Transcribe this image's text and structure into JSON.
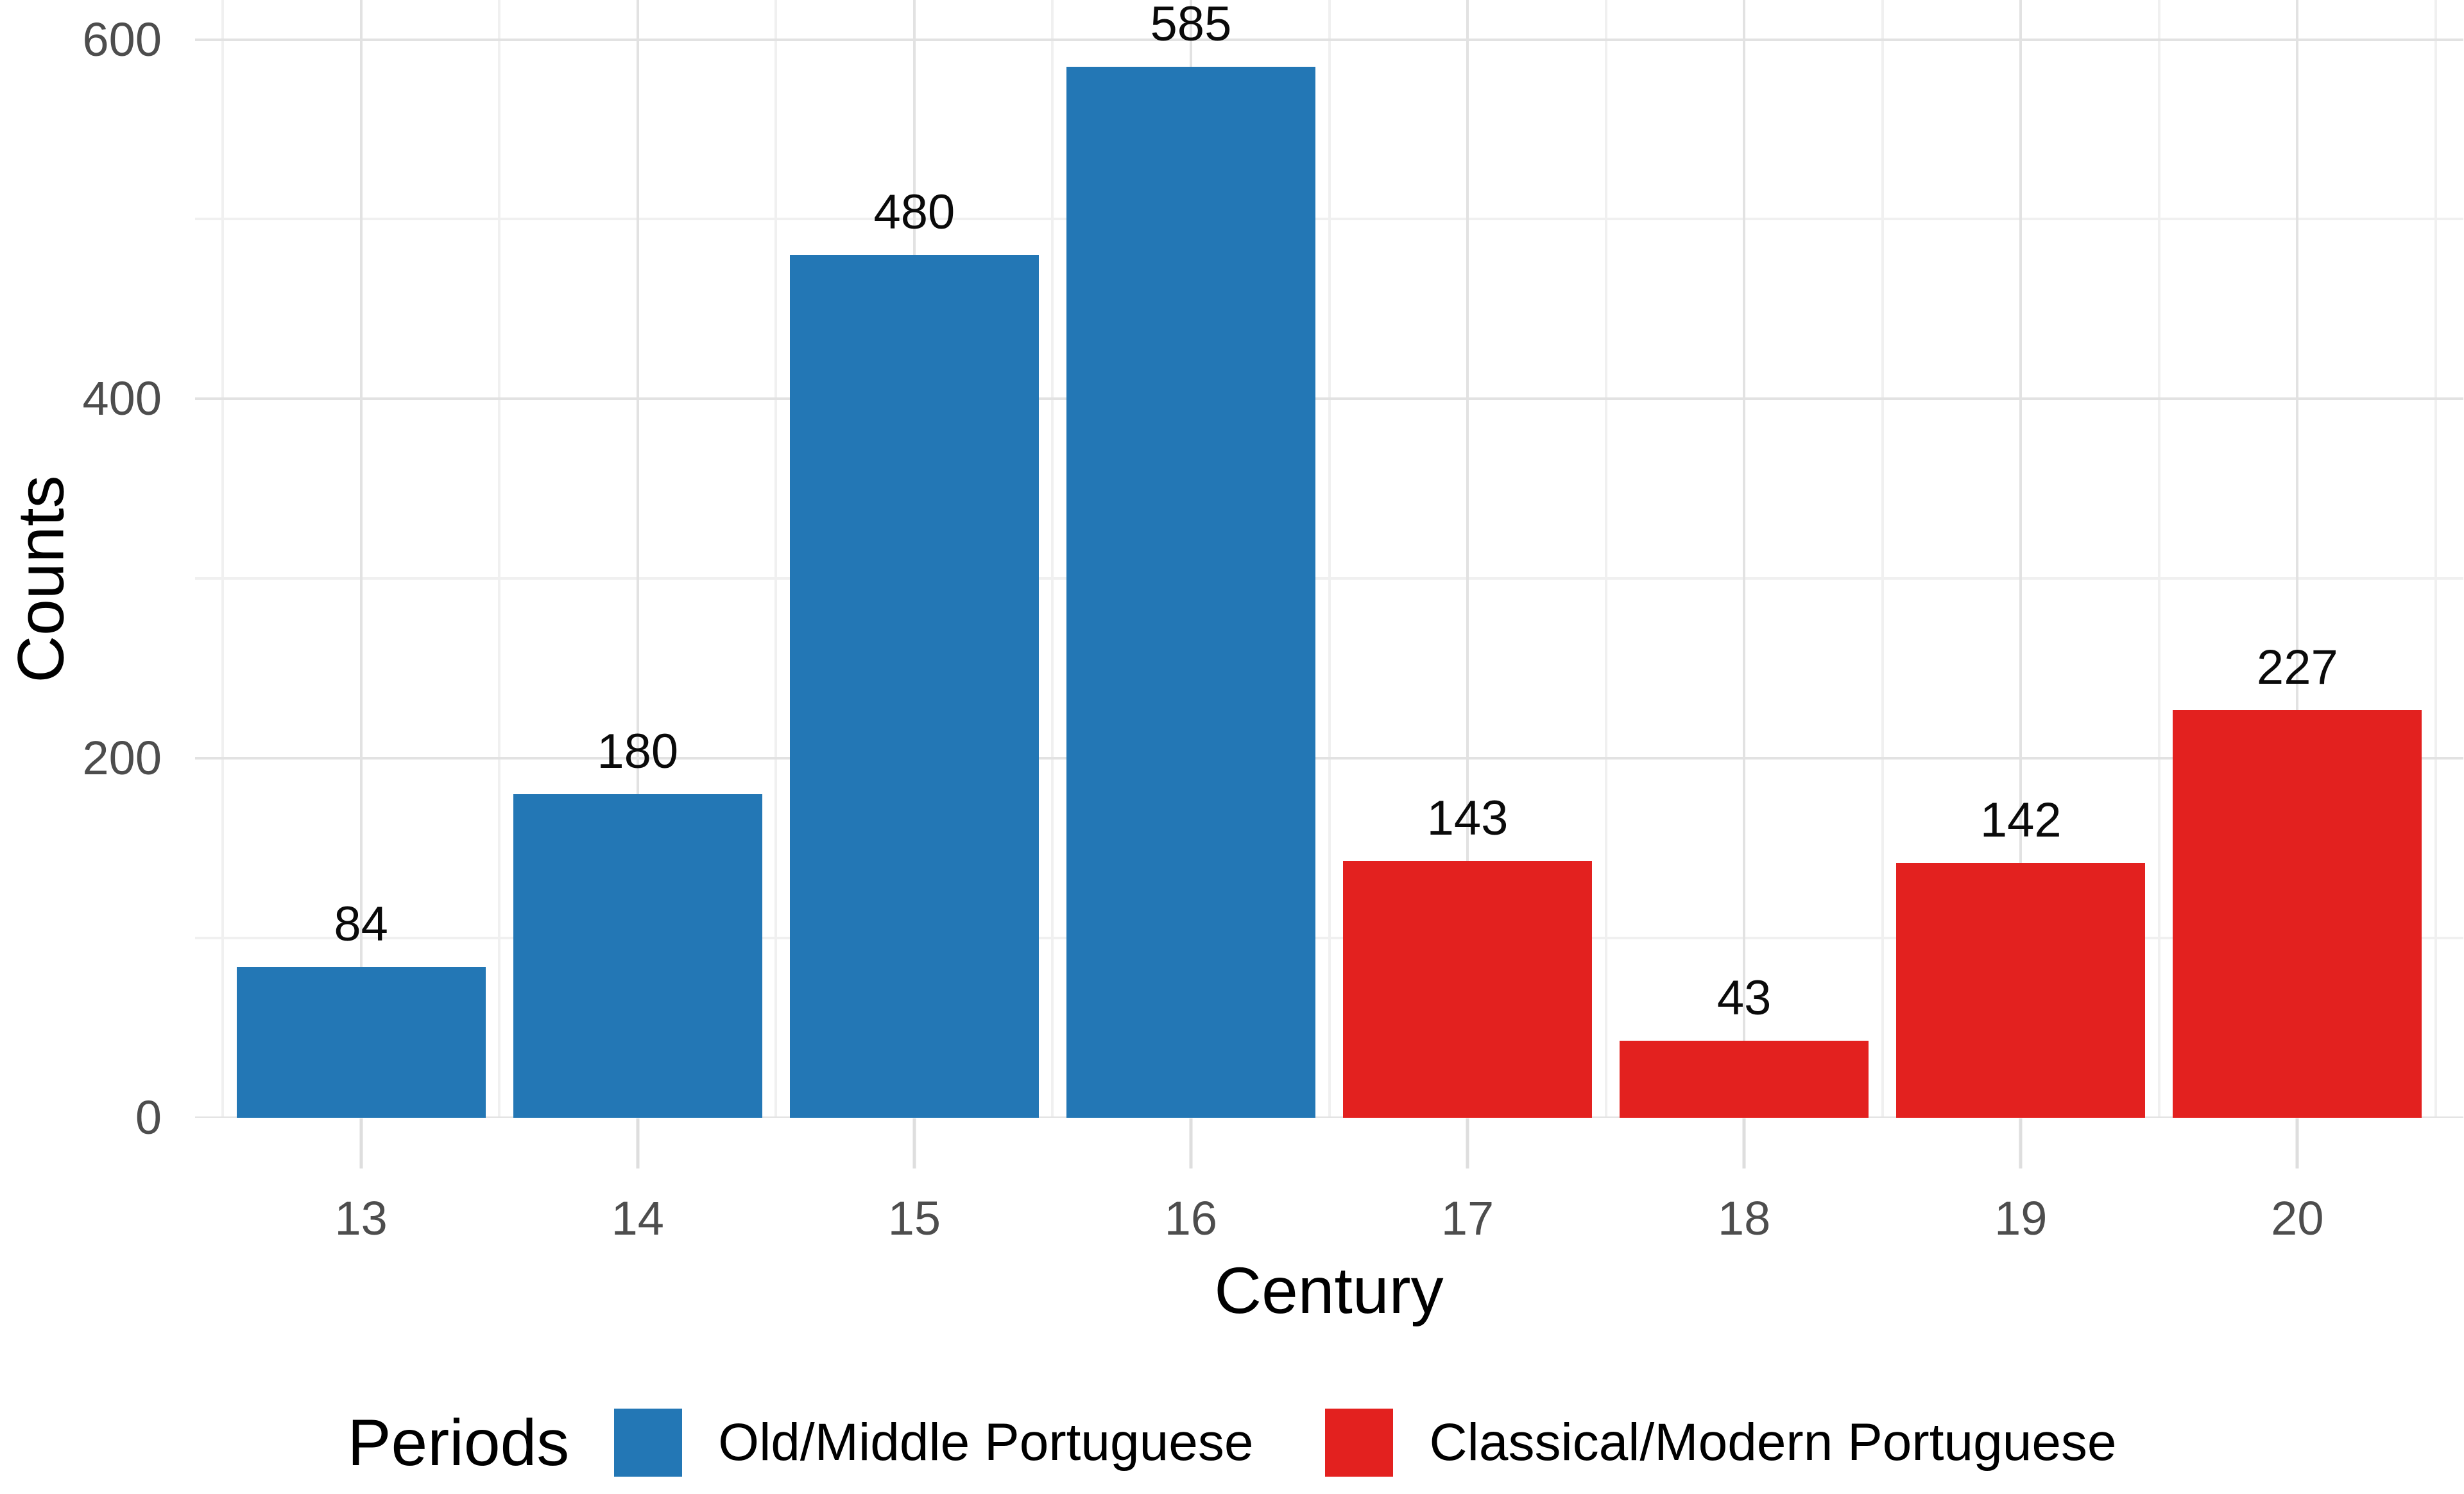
{
  "chart_data": {
    "type": "bar",
    "title": "",
    "xlabel": "Century",
    "ylabel": "Counts",
    "categories": [
      "13",
      "14",
      "15",
      "16",
      "17",
      "18",
      "19",
      "20"
    ],
    "bars": [
      {
        "category": "13",
        "value": 84,
        "period": "Old/Middle Portuguese"
      },
      {
        "category": "14",
        "value": 180,
        "period": "Old/Middle Portuguese"
      },
      {
        "category": "15",
        "value": 480,
        "period": "Old/Middle Portuguese"
      },
      {
        "category": "16",
        "value": 585,
        "period": "Old/Middle Portuguese"
      },
      {
        "category": "17",
        "value": 143,
        "period": "Classical/Modern Portuguese"
      },
      {
        "category": "18",
        "value": 43,
        "period": "Classical/Modern Portuguese"
      },
      {
        "category": "19",
        "value": 142,
        "period": "Classical/Modern Portuguese"
      },
      {
        "category": "20",
        "value": 227,
        "period": "Classical/Modern Portuguese"
      }
    ],
    "series": [
      {
        "name": "Old/Middle Portuguese",
        "color": "#2377b5",
        "categories": [
          "13",
          "14",
          "15",
          "16"
        ],
        "values": [
          84,
          180,
          480,
          585
        ]
      },
      {
        "name": "Classical/Modern Portuguese",
        "color": "#e3211f",
        "categories": [
          "17",
          "18",
          "19",
          "20"
        ],
        "values": [
          143,
          43,
          142,
          227
        ]
      }
    ],
    "ylim": [
      0,
      622
    ],
    "yticks_major": [
      0,
      200,
      400,
      600
    ],
    "yticks_minor": [
      100,
      300,
      500
    ],
    "grid": "on",
    "bar_value_labels": [
      84,
      180,
      480,
      585,
      143,
      43,
      142,
      227
    ],
    "legend": {
      "title": "Periods",
      "position": "bottom",
      "items": [
        {
          "label": "Old/Middle Portuguese",
          "color": "#2377b5"
        },
        {
          "label": "Classical/Modern Portuguese",
          "color": "#e3211f"
        }
      ]
    },
    "colors": {
      "grid_major": "#e2e2e2",
      "grid_minor": "#f0f0f0",
      "axis_tick": "#dedede",
      "tick_label_text": "#4d4d4d",
      "text": "#000000",
      "background": "#ffffff"
    }
  }
}
